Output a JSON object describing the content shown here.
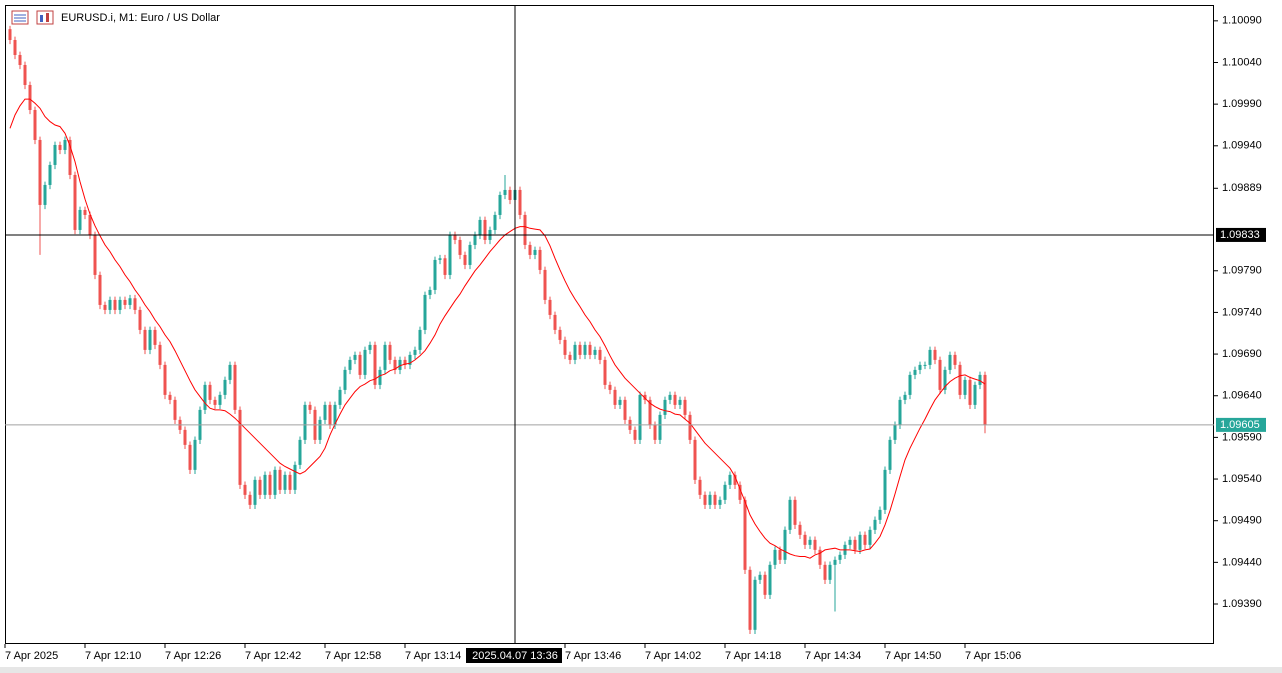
{
  "chart_data": {
    "type": "candlestick",
    "title": "EURUSD.i, M1:  Euro / US Dollar",
    "up_color": "#26a69a",
    "down_color": "#ef5350",
    "ma_color": "#ff0000",
    "bid_color": "#26a69a",
    "ylim": [
      1.09342,
      1.10109
    ],
    "xlim": [
      -1,
      240.8
    ],
    "yticks": [
      {
        "value": 1.1009,
        "label": "1.10090"
      },
      {
        "value": 1.1004,
        "label": "1.10040"
      },
      {
        "value": 1.0999,
        "label": "1.09990"
      },
      {
        "value": 1.0994,
        "label": "1.09940"
      },
      1.09889,
      {
        "value": 1.0979,
        "label": "1.09790"
      },
      {
        "value": 1.0974,
        "label": "1.09740"
      },
      {
        "value": 1.0969,
        "label": "1.09690"
      },
      {
        "value": 1.0964,
        "label": "1.09640"
      },
      {
        "value": 1.0959,
        "label": "1.09590"
      },
      {
        "value": 1.0954,
        "label": "1.09540"
      },
      {
        "value": 1.0949,
        "label": "1.09490"
      },
      {
        "value": 1.0944,
        "label": "1.09440"
      },
      {
        "value": 1.0939,
        "label": "1.09390"
      }
    ],
    "xticks": [
      {
        "value": -1,
        "label": "7 Apr 2025"
      },
      {
        "value": 15,
        "label": "7 Apr 12:10"
      },
      {
        "value": 31,
        "label": "7 Apr 12:26"
      },
      {
        "value": 47,
        "label": "7 Apr 12:42"
      },
      {
        "value": 63,
        "label": "7 Apr 12:58"
      },
      {
        "value": 79,
        "label": "7 Apr 13:14"
      },
      {
        "value": 111,
        "label": "7 Apr 13:46"
      },
      {
        "value": 127,
        "label": "7 Apr 14:02"
      },
      {
        "value": 143,
        "label": "7 Apr 14:18"
      },
      {
        "value": 159,
        "label": "7 Apr 14:34"
      },
      {
        "value": 175,
        "label": "7 Apr 14:50"
      },
      {
        "value": 191,
        "label": "7 Apr 15:06"
      }
    ],
    "crosshair": {
      "price": 1.09833,
      "time": {
        "value": 101,
        "label": "2025.04.07 13:36"
      }
    },
    "bid": 1.09605,
    "open": [
      1.1008,
      1.10067,
      1.10049,
      1.10037,
      1.10013,
      1.09983,
      1.09947,
      1.09869,
      1.09893,
      1.09917,
      1.09941,
      1.09935,
      1.09947,
      1.09905,
      1.09839,
      1.09863,
      1.09857,
      1.09833,
      1.09785,
      1.09749,
      1.09743,
      1.09755,
      1.09743,
      1.09755,
      1.09749,
      1.09757,
      1.09743,
      1.09719,
      1.09695,
      1.09719,
      1.09701,
      1.09677,
      1.09641,
      1.09635,
      1.09611,
      1.09599,
      1.09581,
      1.09551,
      1.09587,
      1.09623,
      1.09653,
      1.09635,
      1.09629,
      1.09641,
      1.09659,
      1.09677,
      1.09623,
      1.09533,
      1.09521,
      1.09509,
      1.09539,
      1.09521,
      1.09545,
      1.09521,
      1.09551,
      1.09527,
      1.09545,
      1.09527,
      1.09557,
      1.09587,
      1.09629,
      1.09623,
      1.09587,
      1.09611,
      1.09629,
      1.09605,
      1.09629,
      1.09647,
      1.09671,
      1.09683,
      1.09689,
      1.09665,
      1.09695,
      1.09701,
      1.09653,
      1.09671,
      1.09701,
      1.09683,
      1.09671,
      1.09683,
      1.09677,
      1.09689,
      1.09695,
      1.09719,
      1.09761,
      1.09767,
      1.09803,
      1.09805,
      1.09785,
      1.09833,
      1.09827,
      1.09809,
      1.09797,
      1.09821,
      1.09833,
      1.09851,
      1.09827,
      1.09839,
      1.09857,
      1.09881,
      1.09887,
      1.09875,
      1.09887,
      1.09857,
      1.09821,
      1.09809,
      1.09815,
      1.09791,
      1.09755,
      1.09737,
      1.09719,
      1.09707,
      1.09689,
      1.09683,
      1.09701,
      1.09689,
      1.09701,
      1.09689,
      1.09695,
      1.09683,
      1.09653,
      1.09647,
      1.09629,
      1.09635,
      1.09611,
      1.09599,
      1.09587,
      1.09641,
      1.09635,
      1.09605,
      1.09587,
      1.09617,
      1.09635,
      1.09641,
      1.09629,
      1.09635,
      1.09617,
      1.09587,
      1.09539,
      1.09521,
      1.09509,
      1.09521,
      1.09509,
      1.09515,
      1.09533,
      1.09545,
      1.09533,
      1.09515,
      1.09431,
      1.09359,
      1.09419,
      1.09425,
      1.09401,
      1.09437,
      1.09455,
      1.09443,
      1.09479,
      1.09515,
      1.09485,
      1.09473,
      1.09461,
      1.09467,
      1.09455,
      1.09437,
      1.09419,
      1.09437,
      1.09443,
      1.09449,
      1.09461,
      1.09467,
      1.09455,
      1.09473,
      1.09461,
      1.09479,
      1.09491,
      1.09503,
      1.09551,
      1.09587,
      1.09605,
      1.09635,
      1.09641,
      1.09665,
      1.09671,
      1.09677,
      1.09677,
      1.09695,
      1.09683,
      1.09647,
      1.09671,
      1.09689,
      1.09677,
      1.09641,
      1.09659,
      1.09629,
      1.09653,
      1.09665
    ],
    "high": [
      1.10084,
      1.10071,
      1.10053,
      1.10041,
      1.10017,
      1.09987,
      1.09951,
      1.09897,
      1.09921,
      1.09945,
      1.09945,
      1.09951,
      1.09951,
      1.09909,
      1.09867,
      1.09867,
      1.09861,
      1.09837,
      1.09789,
      1.09753,
      1.09759,
      1.09759,
      1.09759,
      1.09759,
      1.09761,
      1.09761,
      1.09747,
      1.09723,
      1.09723,
      1.09723,
      1.09705,
      1.09681,
      1.09645,
      1.09639,
      1.09615,
      1.09603,
      1.09585,
      1.09591,
      1.09627,
      1.09657,
      1.09657,
      1.09639,
      1.09645,
      1.09663,
      1.09681,
      1.09681,
      1.09627,
      1.09537,
      1.09525,
      1.09543,
      1.09543,
      1.09549,
      1.09549,
      1.09555,
      1.09555,
      1.09549,
      1.09549,
      1.09561,
      1.09591,
      1.09633,
      1.09633,
      1.09627,
      1.09615,
      1.09633,
      1.09633,
      1.09633,
      1.09651,
      1.09675,
      1.09687,
      1.09693,
      1.09693,
      1.09699,
      1.09705,
      1.09705,
      1.09675,
      1.09705,
      1.09705,
      1.09687,
      1.09687,
      1.09687,
      1.09693,
      1.09699,
      1.09723,
      1.09765,
      1.09771,
      1.09807,
      1.09809,
      1.09809,
      1.09837,
      1.09837,
      1.09831,
      1.09813,
      1.09825,
      1.09837,
      1.09855,
      1.09855,
      1.09843,
      1.09861,
      1.09885,
      1.09905,
      1.09891,
      1.09891,
      1.09891,
      1.09861,
      1.09825,
      1.09819,
      1.09819,
      1.09795,
      1.09759,
      1.09741,
      1.09723,
      1.09711,
      1.09693,
      1.09705,
      1.09705,
      1.09705,
      1.09705,
      1.09699,
      1.09699,
      1.09687,
      1.09657,
      1.09651,
      1.09639,
      1.09639,
      1.09615,
      1.09603,
      1.09645,
      1.09645,
      1.09639,
      1.09609,
      1.09621,
      1.09639,
      1.09645,
      1.09645,
      1.09639,
      1.09639,
      1.09621,
      1.09591,
      1.09543,
      1.09525,
      1.09525,
      1.09525,
      1.09519,
      1.09537,
      1.09549,
      1.09549,
      1.09537,
      1.09519,
      1.09435,
      1.09423,
      1.09429,
      1.09429,
      1.09441,
      1.09459,
      1.09459,
      1.09483,
      1.09519,
      1.09519,
      1.09489,
      1.09477,
      1.09471,
      1.09471,
      1.09459,
      1.09441,
      1.09441,
      1.09447,
      1.09453,
      1.09465,
      1.09471,
      1.09471,
      1.09477,
      1.09477,
      1.09483,
      1.09495,
      1.09507,
      1.09555,
      1.09591,
      1.09609,
      1.09639,
      1.09645,
      1.09669,
      1.09675,
      1.09681,
      1.09681,
      1.09699,
      1.09699,
      1.09687,
      1.09675,
      1.09693,
      1.09693,
      1.09681,
      1.09663,
      1.09663,
      1.09657,
      1.09669,
      1.09669
    ],
    "low": [
      1.10062,
      1.10044,
      1.10032,
      1.10008,
      1.09978,
      1.09942,
      1.09809,
      1.09864,
      1.09888,
      1.09912,
      1.0993,
      1.0993,
      1.099,
      1.09834,
      1.09834,
      1.09852,
      1.09828,
      1.0978,
      1.09744,
      1.09738,
      1.09738,
      1.09738,
      1.09738,
      1.09744,
      1.09744,
      1.09738,
      1.09714,
      1.0969,
      1.0969,
      1.09696,
      1.09672,
      1.09636,
      1.0963,
      1.09606,
      1.09594,
      1.09576,
      1.09546,
      1.09546,
      1.09582,
      1.09618,
      1.0963,
      1.09624,
      1.09624,
      1.09636,
      1.09654,
      1.09618,
      1.09528,
      1.09516,
      1.09504,
      1.09504,
      1.09516,
      1.09516,
      1.09516,
      1.09516,
      1.09522,
      1.09522,
      1.09522,
      1.09522,
      1.09552,
      1.09582,
      1.09618,
      1.09582,
      1.09582,
      1.09606,
      1.096,
      1.096,
      1.09624,
      1.09642,
      1.09666,
      1.09678,
      1.0966,
      1.0966,
      1.0969,
      1.09648,
      1.09648,
      1.09666,
      1.09678,
      1.09666,
      1.09666,
      1.09672,
      1.09672,
      1.09684,
      1.0969,
      1.09714,
      1.09756,
      1.09762,
      1.09798,
      1.0978,
      1.0978,
      1.09822,
      1.09804,
      1.09792,
      1.09792,
      1.09816,
      1.09828,
      1.09822,
      1.09822,
      1.09834,
      1.09852,
      1.09876,
      1.0987,
      1.0987,
      1.09852,
      1.09816,
      1.09804,
      1.09804,
      1.09786,
      1.0975,
      1.09732,
      1.09714,
      1.09702,
      1.09684,
      1.09678,
      1.09678,
      1.09684,
      1.09684,
      1.09684,
      1.09684,
      1.09678,
      1.09648,
      1.09642,
      1.09624,
      1.09624,
      1.09606,
      1.09594,
      1.09582,
      1.09582,
      1.0963,
      1.096,
      1.09582,
      1.09582,
      1.09612,
      1.0963,
      1.09624,
      1.09624,
      1.09612,
      1.09582,
      1.09534,
      1.09516,
      1.09504,
      1.09504,
      1.09504,
      1.09504,
      1.0951,
      1.09528,
      1.09528,
      1.0951,
      1.09426,
      1.09354,
      1.09354,
      1.09414,
      1.09396,
      1.09396,
      1.09432,
      1.09438,
      1.09438,
      1.09474,
      1.0948,
      1.09468,
      1.09456,
      1.09456,
      1.0945,
      1.09432,
      1.09414,
      1.09414,
      1.09381,
      1.09438,
      1.09444,
      1.09456,
      1.0945,
      1.0945,
      1.09456,
      1.09456,
      1.09474,
      1.09486,
      1.09498,
      1.09546,
      1.09582,
      1.096,
      1.0963,
      1.09636,
      1.0966,
      1.09666,
      1.09672,
      1.09672,
      1.09678,
      1.09642,
      1.09642,
      1.09666,
      1.09672,
      1.09636,
      1.09636,
      1.09624,
      1.09624,
      1.09648,
      1.09595
    ],
    "close": [
      1.10067,
      1.10049,
      1.10037,
      1.10013,
      1.09983,
      1.09947,
      1.09869,
      1.09893,
      1.09917,
      1.09941,
      1.09935,
      1.09947,
      1.09905,
      1.09839,
      1.09863,
      1.09857,
      1.09833,
      1.09785,
      1.09749,
      1.09743,
      1.09755,
      1.09743,
      1.09755,
      1.09749,
      1.09757,
      1.09743,
      1.09719,
      1.09695,
      1.09719,
      1.09701,
      1.09677,
      1.09641,
      1.09635,
      1.09611,
      1.09599,
      1.09581,
      1.09551,
      1.09587,
      1.09623,
      1.09653,
      1.09635,
      1.09629,
      1.09641,
      1.09659,
      1.09677,
      1.09623,
      1.09533,
      1.09521,
      1.09509,
      1.09539,
      1.09521,
      1.09545,
      1.09521,
      1.09551,
      1.09527,
      1.09545,
      1.09527,
      1.09557,
      1.09587,
      1.09629,
      1.09623,
      1.09587,
      1.09611,
      1.09629,
      1.09605,
      1.09629,
      1.09647,
      1.09671,
      1.09683,
      1.09689,
      1.09665,
      1.09695,
      1.09701,
      1.09653,
      1.09671,
      1.09701,
      1.09683,
      1.09671,
      1.09683,
      1.09677,
      1.09689,
      1.09695,
      1.09719,
      1.09761,
      1.09767,
      1.09803,
      1.09805,
      1.09785,
      1.09833,
      1.09827,
      1.09809,
      1.09797,
      1.09821,
      1.09833,
      1.09851,
      1.09827,
      1.09839,
      1.09857,
      1.09881,
      1.09887,
      1.09875,
      1.09887,
      1.09857,
      1.09821,
      1.09809,
      1.09815,
      1.09791,
      1.09755,
      1.09737,
      1.09719,
      1.09707,
      1.09689,
      1.09683,
      1.09701,
      1.09689,
      1.09701,
      1.09689,
      1.09695,
      1.09683,
      1.09653,
      1.09647,
      1.09629,
      1.09635,
      1.09611,
      1.09599,
      1.09587,
      1.09641,
      1.09635,
      1.09605,
      1.09587,
      1.09617,
      1.09635,
      1.09641,
      1.09629,
      1.09635,
      1.09617,
      1.09587,
      1.09539,
      1.09521,
      1.09509,
      1.09521,
      1.09509,
      1.09515,
      1.09533,
      1.09545,
      1.09533,
      1.09515,
      1.09431,
      1.09359,
      1.09419,
      1.09425,
      1.09401,
      1.09437,
      1.09455,
      1.09443,
      1.09479,
      1.09515,
      1.09485,
      1.09473,
      1.09461,
      1.09467,
      1.09455,
      1.09437,
      1.09419,
      1.09437,
      1.09443,
      1.09449,
      1.09461,
      1.09467,
      1.09455,
      1.09473,
      1.09461,
      1.09479,
      1.09491,
      1.09503,
      1.09551,
      1.09587,
      1.09605,
      1.09635,
      1.09641,
      1.09665,
      1.09671,
      1.09677,
      1.09677,
      1.09695,
      1.09683,
      1.09647,
      1.09671,
      1.09689,
      1.09677,
      1.09641,
      1.09659,
      1.09629,
      1.09653,
      1.09665,
      1.09605
    ],
    "ma": {
      "values": [
        1.09961,
        1.09977,
        1.09988,
        1.09996,
        1.09996,
        1.09991,
        1.09985,
        1.09975,
        1.09969,
        1.09965,
        1.09963,
        1.09955,
        1.0994,
        1.09921,
        1.09897,
        1.09876,
        1.09858,
        1.09844,
        1.09832,
        1.09821,
        1.09813,
        1.09803,
        1.09795,
        1.09785,
        1.09777,
        1.09767,
        1.09759,
        1.09749,
        1.09741,
        1.09731,
        1.09723,
        1.09713,
        1.09705,
        1.09694,
        1.09682,
        1.0967,
        1.09658,
        1.09647,
        1.09639,
        1.09631,
        1.09625,
        1.09623,
        1.09623,
        1.09622,
        1.09618,
        1.09613,
        1.09607,
        1.09601,
        1.09595,
        1.09589,
        1.09583,
        1.09577,
        1.09571,
        1.09565,
        1.09559,
        1.09555,
        1.09552,
        1.09549,
        1.09546,
        1.09549,
        1.09555,
        1.09561,
        1.09567,
        1.09577,
        1.09593,
        1.09606,
        1.09618,
        1.09629,
        1.09637,
        1.09645,
        1.09651,
        1.09654,
        1.09658,
        1.0966,
        1.09664,
        1.09666,
        1.0967,
        1.09672,
        1.09676,
        1.09678,
        1.09679,
        1.09683,
        1.09688,
        1.09694,
        1.09703,
        1.09713,
        1.09726,
        1.09736,
        1.09745,
        1.09754,
        1.09762,
        1.09772,
        1.09781,
        1.0979,
        1.09797,
        1.09805,
        1.09813,
        1.0982,
        1.09827,
        1.09833,
        1.09837,
        1.09841,
        1.09843,
        1.09843,
        1.09841,
        1.0984,
        1.09839,
        1.09832,
        1.0982,
        1.09805,
        1.09791,
        1.09778,
        1.09766,
        1.09756,
        1.09747,
        1.09737,
        1.09729,
        1.09719,
        1.09711,
        1.097,
        1.09688,
        1.09677,
        1.09669,
        1.09661,
        1.09655,
        1.09649,
        1.09643,
        1.09637,
        1.09631,
        1.09627,
        1.09624,
        1.09622,
        1.09621,
        1.09618,
        1.09617,
        1.09612,
        1.09607,
        1.09599,
        1.09591,
        1.09583,
        1.09577,
        1.09571,
        1.09565,
        1.09559,
        1.09553,
        1.09543,
        1.09528,
        1.09513,
        1.09497,
        1.09486,
        1.09477,
        1.09469,
        1.09463,
        1.0946,
        1.09456,
        1.09453,
        1.0945,
        1.09448,
        1.09447,
        1.09447,
        1.09445,
        1.09449,
        1.09451,
        1.09455,
        1.09456,
        1.09457,
        1.09455,
        1.09455,
        1.09455,
        1.09454,
        1.09453,
        1.09455,
        1.09456,
        1.09463,
        1.09471,
        1.09485,
        1.09502,
        1.09522,
        1.09543,
        1.09563,
        1.09577,
        1.09589,
        1.09601,
        1.09612,
        1.09624,
        1.09635,
        1.09643,
        1.09651,
        1.09657,
        1.09661,
        1.09664,
        1.09665,
        1.09662,
        1.0966,
        1.09658,
        1.09654
      ]
    }
  }
}
